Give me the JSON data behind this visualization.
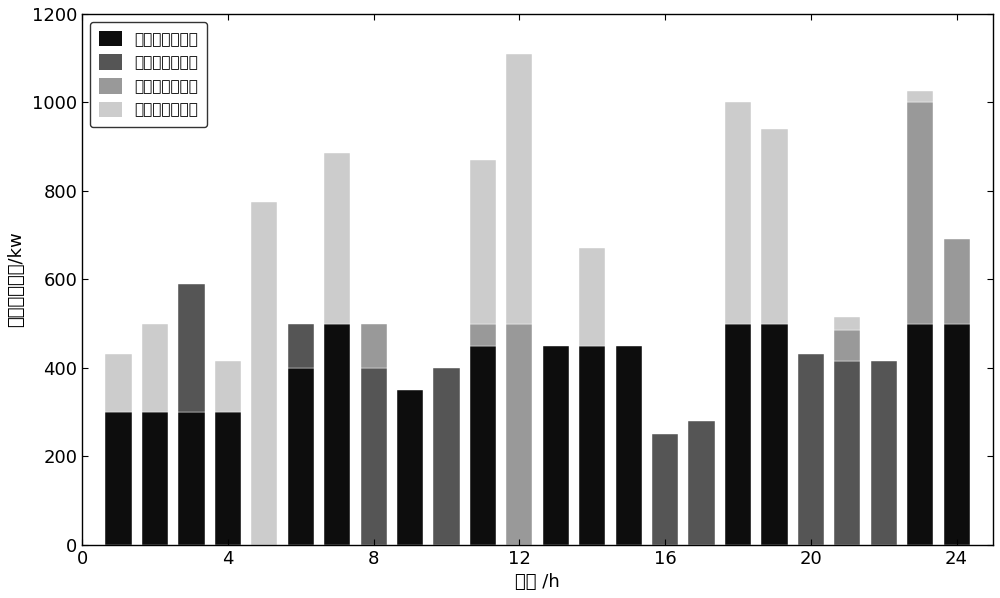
{
  "series_labels": [
    "气惯性备用出力",
    "热惯性备用出力",
    "发电侧备用出力",
    "需求侧备用出力"
  ],
  "colors": [
    "#0d0d0d",
    "#555555",
    "#999999",
    "#cccccc"
  ],
  "x_ticks": [
    0,
    4,
    8,
    12,
    16,
    20,
    24
  ],
  "groups": [
    {
      "time": 1,
      "stack": [
        300,
        0,
        0,
        130
      ]
    },
    {
      "time": 2,
      "stack": [
        300,
        0,
        0,
        200
      ]
    },
    {
      "time": 3,
      "stack": [
        300,
        290,
        0,
        0
      ]
    },
    {
      "time": 4,
      "stack": [
        300,
        0,
        0,
        115
      ]
    },
    {
      "time": 5,
      "stack": [
        0,
        0,
        0,
        775
      ]
    },
    {
      "time": 6,
      "stack": [
        400,
        100,
        0,
        0
      ]
    },
    {
      "time": 7,
      "stack": [
        500,
        0,
        0,
        385
      ]
    },
    {
      "time": 8,
      "stack": [
        0,
        400,
        100,
        0
      ]
    },
    {
      "time": 9,
      "stack": [
        350,
        0,
        0,
        0
      ]
    },
    {
      "time": 10,
      "stack": [
        0,
        400,
        0,
        0
      ]
    },
    {
      "time": 11,
      "stack": [
        450,
        0,
        50,
        370
      ]
    },
    {
      "time": 12,
      "stack": [
        0,
        0,
        500,
        610
      ]
    },
    {
      "time": 13,
      "stack": [
        450,
        0,
        0,
        0
      ]
    },
    {
      "time": 14,
      "stack": [
        450,
        0,
        0,
        220
      ]
    },
    {
      "time": 15,
      "stack": [
        450,
        0,
        0,
        0
      ]
    },
    {
      "time": 16,
      "stack": [
        0,
        250,
        0,
        0
      ]
    },
    {
      "time": 17,
      "stack": [
        0,
        280,
        0,
        0
      ]
    },
    {
      "time": 18,
      "stack": [
        500,
        0,
        0,
        500
      ]
    },
    {
      "time": 19,
      "stack": [
        500,
        0,
        0,
        440
      ]
    },
    {
      "time": 20,
      "stack": [
        0,
        430,
        0,
        0
      ]
    },
    {
      "time": 21,
      "stack": [
        0,
        415,
        70,
        30
      ]
    },
    {
      "time": 22,
      "stack": [
        0,
        415,
        0,
        0
      ]
    },
    {
      "time": 23,
      "stack": [
        500,
        0,
        500,
        25
      ]
    },
    {
      "time": 24,
      "stack": [
        500,
        0,
        190,
        0
      ]
    }
  ],
  "ylabel": "备用实际出力/kw",
  "xlabel": "时间 /h",
  "ylim": [
    0,
    1200
  ],
  "yticks": [
    0,
    200,
    400,
    600,
    800,
    1000,
    1200
  ],
  "figsize": [
    10.0,
    5.98
  ],
  "dpi": 100
}
